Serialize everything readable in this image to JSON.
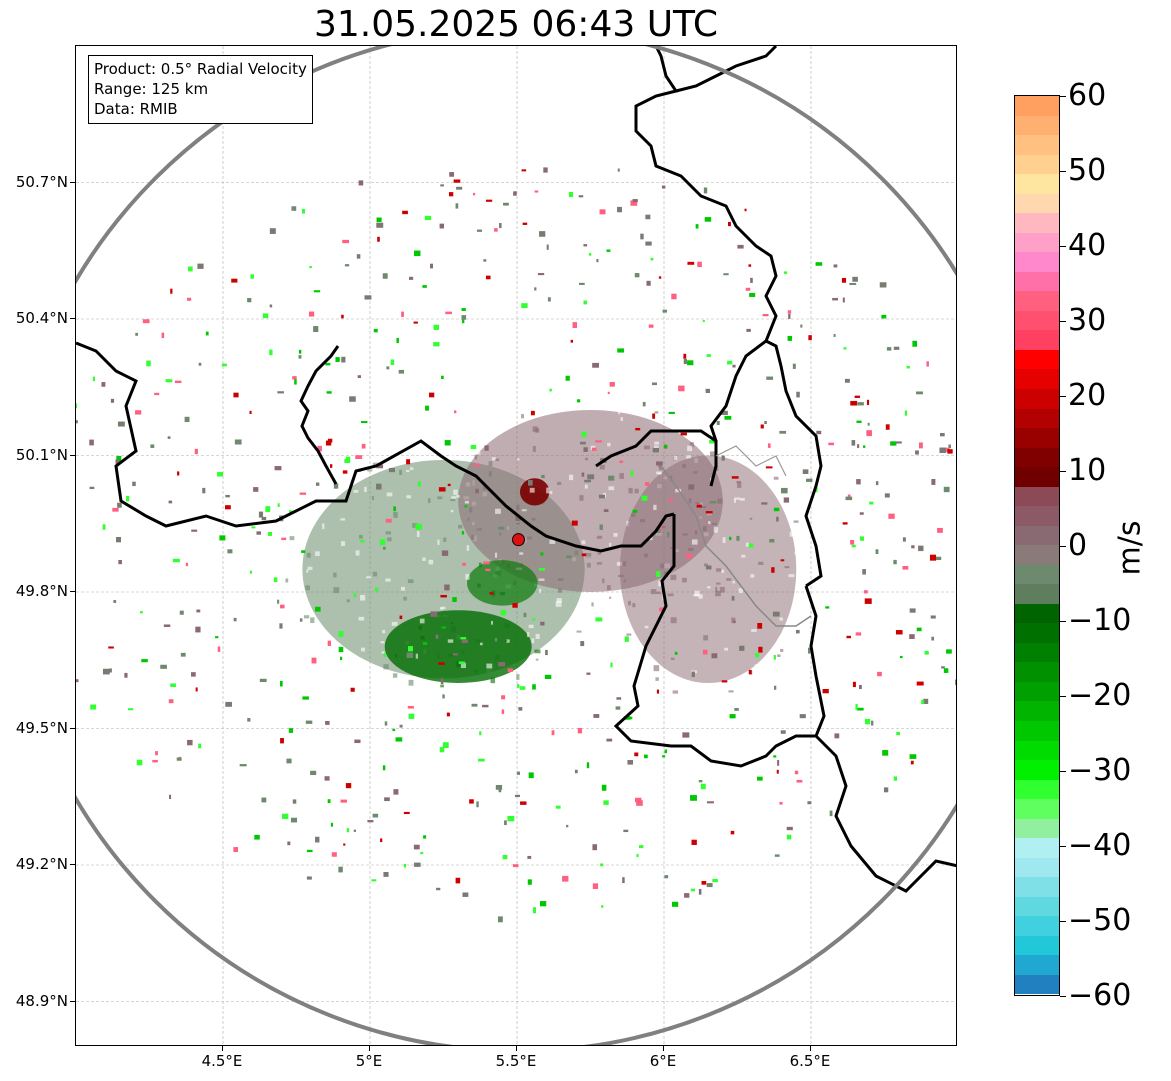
{
  "title": "31.05.2025 06:43 UTC",
  "info": {
    "product": "Product: 0.5° Radial Velocity",
    "range": "Range: 125 km",
    "source": "Data: RMIB"
  },
  "map": {
    "lon_range": [
      4.0,
      7.0
    ],
    "lat_range": [
      48.8,
      51.0
    ],
    "lat_ticks": [
      {
        "value": 50.7,
        "label": "50.7°N"
      },
      {
        "value": 50.4,
        "label": "50.4°N"
      },
      {
        "value": 50.1,
        "label": "50.1°N"
      },
      {
        "value": 49.8,
        "label": "49.8°N"
      },
      {
        "value": 49.5,
        "label": "49.5°N"
      },
      {
        "value": 49.2,
        "label": "49.2°N"
      },
      {
        "value": 48.9,
        "label": "48.9°N"
      }
    ],
    "lon_ticks": [
      {
        "value": 4.5,
        "label": "4.5°E"
      },
      {
        "value": 5.0,
        "label": "5°E"
      },
      {
        "value": 5.5,
        "label": "5.5°E"
      },
      {
        "value": 6.0,
        "label": "6°E"
      },
      {
        "value": 6.5,
        "label": "6.5°E"
      }
    ],
    "radar_site": {
      "lon": 5.505,
      "lat": 49.915
    },
    "range_ring_km": 125,
    "range_ring_color": "#808080",
    "radar_marker_color": "#dd1111",
    "border_color": "#000000",
    "grid": true,
    "clusters": [
      {
        "lon": 5.25,
        "lat": 49.85,
        "rlon": 0.48,
        "rlat": 0.24,
        "color": "#6a8a6a",
        "opacity": 0.55
      },
      {
        "lon": 5.75,
        "lat": 50.0,
        "rlon": 0.45,
        "rlat": 0.2,
        "color": "#8a6a72",
        "opacity": 0.55
      },
      {
        "lon": 6.15,
        "lat": 49.85,
        "rlon": 0.3,
        "rlat": 0.25,
        "color": "#8a6a72",
        "opacity": 0.5
      },
      {
        "lon": 5.3,
        "lat": 49.68,
        "rlon": 0.25,
        "rlat": 0.08,
        "color": "#006e00",
        "opacity": 0.8
      },
      {
        "lon": 5.45,
        "lat": 49.82,
        "rlon": 0.12,
        "rlat": 0.05,
        "color": "#0a7a0a",
        "opacity": 0.7
      },
      {
        "lon": 5.56,
        "lat": 50.02,
        "rlon": 0.05,
        "rlat": 0.03,
        "color": "#7a0000",
        "opacity": 0.9
      }
    ]
  },
  "colorbar": {
    "units": "m/s",
    "min": -60,
    "max": 60,
    "ticks": [
      "60",
      "50",
      "40",
      "30",
      "20",
      "10",
      "0",
      "−10",
      "−20",
      "−30",
      "−40",
      "−50",
      "−60"
    ],
    "colors_top_to_bottom": [
      "#ffa060",
      "#ffb070",
      "#ffc080",
      "#ffd090",
      "#ffe6a0",
      "#ffd8b0",
      "#ffb8c0",
      "#ffa0c8",
      "#ff88cc",
      "#ff70a8",
      "#ff6080",
      "#ff5070",
      "#ff4060",
      "#ff0000",
      "#e60000",
      "#cc0000",
      "#b30000",
      "#990000",
      "#800000",
      "#700000",
      "#8b4a55",
      "#8c5a66",
      "#8a6a72",
      "#8a7a78",
      "#6e8a6e",
      "#5e7e5e",
      "#006400",
      "#007000",
      "#008000",
      "#009000",
      "#00a000",
      "#00b400",
      "#00c800",
      "#00dc00",
      "#00f000",
      "#30ff30",
      "#60ff60",
      "#90f0a0",
      "#b0f0f0",
      "#a0e8f0",
      "#80e0e8",
      "#60d8e0",
      "#40d0e0",
      "#20c8d8",
      "#20a8d0",
      "#2080c0"
    ]
  }
}
